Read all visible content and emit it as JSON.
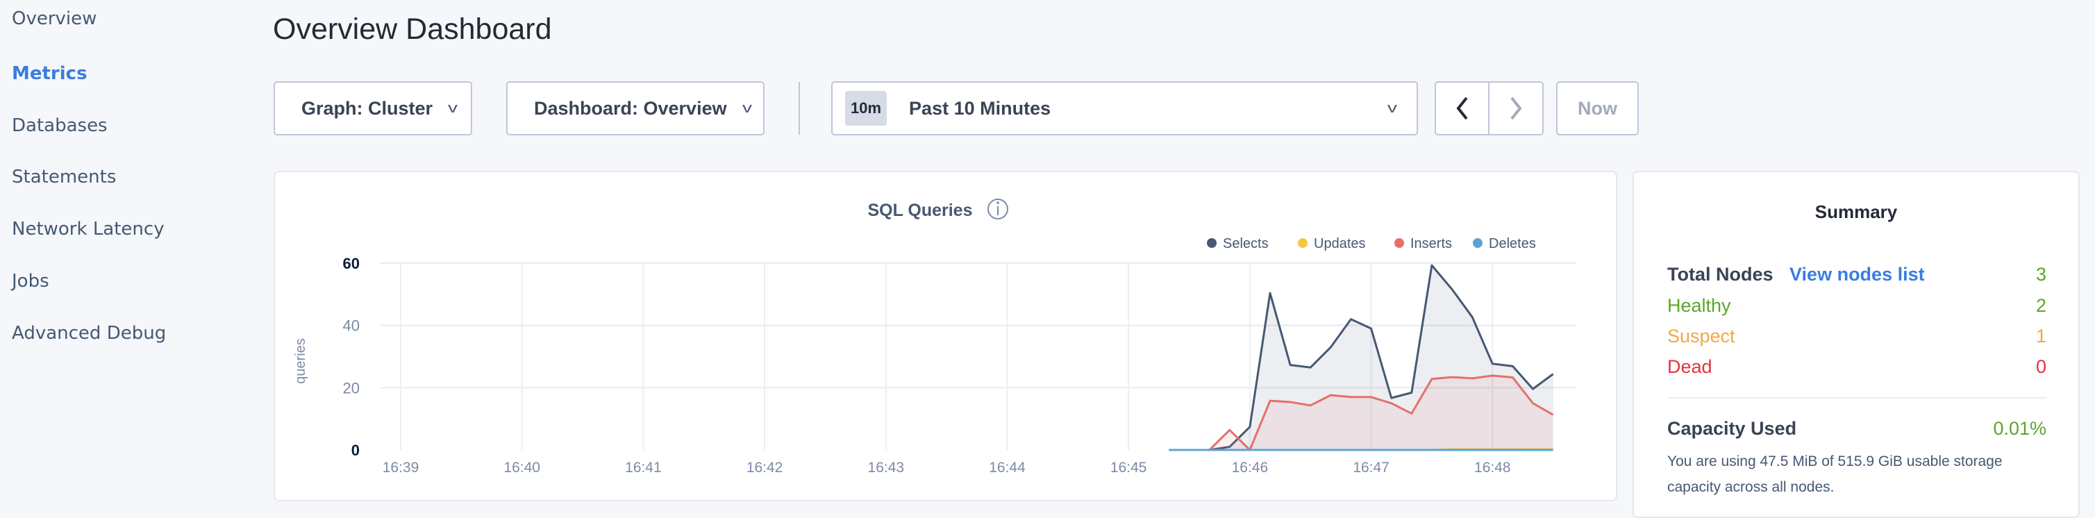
{
  "sidebar": {
    "items": [
      {
        "label": "Overview",
        "active": false
      },
      {
        "label": "Metrics",
        "active": true
      },
      {
        "label": "Databases",
        "active": false
      },
      {
        "label": "Statements",
        "active": false
      },
      {
        "label": "Network Latency",
        "active": false
      },
      {
        "label": "Jobs",
        "active": false
      },
      {
        "label": "Advanced Debug",
        "active": false
      }
    ]
  },
  "header": {
    "title": "Overview Dashboard"
  },
  "toolbar": {
    "graph_select": "Graph: Cluster",
    "dashboard_select": "Dashboard: Overview",
    "time_badge": "10m",
    "time_range": "Past 10 Minutes",
    "prev_icon": "chevron-left-icon",
    "next_icon": "chevron-right-icon",
    "now_label": "Now"
  },
  "chart_data": {
    "type": "area",
    "title": "SQL Queries",
    "ylabel": "queries",
    "xlabel": "",
    "ylim": [
      0,
      60
    ],
    "yticks": [
      "0",
      "20",
      "40",
      "60"
    ],
    "xticks": [
      "16:39",
      "16:40",
      "16:41",
      "16:42",
      "16:43",
      "16:44",
      "16:45",
      "16:46",
      "16:47",
      "16:48"
    ],
    "legend_placement": "top-right",
    "grid": true,
    "x": [
      "16:45:20",
      "16:45:30",
      "16:45:40",
      "16:45:50",
      "16:46:00",
      "16:46:10",
      "16:46:20",
      "16:46:30",
      "16:46:40",
      "16:46:50",
      "16:47:00",
      "16:47:10",
      "16:47:20",
      "16:47:30",
      "16:47:40",
      "16:47:50",
      "16:48:00",
      "16:48:10",
      "16:48:20",
      "16:48:30"
    ],
    "series": [
      {
        "name": "Selects",
        "color": "#475872",
        "values": [
          0,
          0,
          0,
          1,
          7.4,
          50.4,
          27.3,
          26.5,
          33,
          42,
          39,
          16.7,
          18.4,
          59.3,
          51.6,
          42.7,
          27.7,
          26.9,
          19.6,
          24.4
        ]
      },
      {
        "name": "Updates",
        "color": "#f5c842",
        "values": [
          0,
          0,
          0,
          0,
          0,
          0,
          0,
          0,
          0,
          0,
          0,
          0,
          0,
          0,
          0.2,
          0.2,
          0.2,
          0.2,
          0.2,
          0.2
        ]
      },
      {
        "name": "Inserts",
        "color": "#e5706a",
        "values": [
          0,
          0,
          0,
          6.4,
          0,
          15.8,
          15.4,
          14.3,
          17.6,
          17,
          17,
          15,
          11.7,
          22.8,
          23.4,
          23,
          23.9,
          23.3,
          15,
          11.3
        ]
      },
      {
        "name": "Deletes",
        "color": "#5ca3d3",
        "values": [
          0,
          0,
          0,
          0,
          0,
          0,
          0,
          0,
          0,
          0,
          0,
          0,
          0,
          0,
          0,
          0,
          0,
          0,
          0,
          0
        ]
      }
    ]
  },
  "summary": {
    "title": "Summary",
    "total_nodes_label": "Total Nodes",
    "view_nodes_link": "View nodes list",
    "total_nodes": "3",
    "healthy_label": "Healthy",
    "healthy": "2",
    "suspect_label": "Suspect",
    "suspect": "1",
    "dead_label": "Dead",
    "dead": "0",
    "capacity_label": "Capacity Used",
    "capacity_value": "0.01%",
    "capacity_desc": "You are using 47.5 MiB of 515.9 GiB usable storage capacity across all nodes.",
    "colors": {
      "healthy": "#5ca52b",
      "suspect": "#f5a644",
      "dead": "#e0343f",
      "link": "#3a7de1"
    }
  }
}
